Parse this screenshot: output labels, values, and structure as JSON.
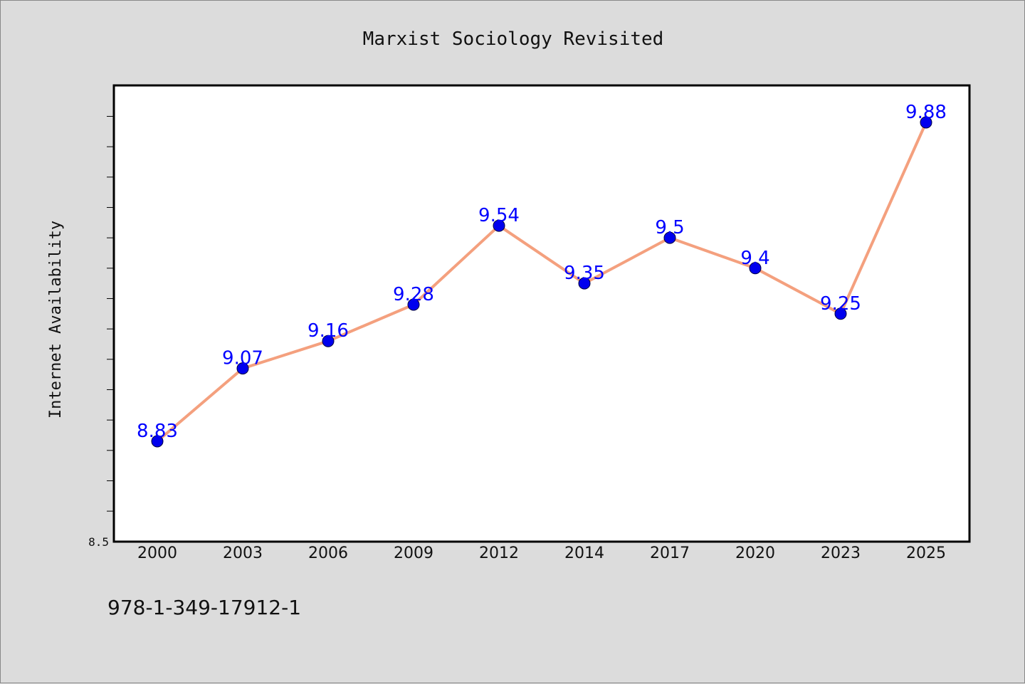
{
  "chart_data": {
    "type": "line",
    "title": "Marxist Sociology Revisited",
    "xlabel": "",
    "ylabel": "Internet Availability",
    "categories": [
      "2000",
      "2003",
      "2006",
      "2009",
      "2012",
      "2014",
      "2017",
      "2020",
      "2023",
      "2025"
    ],
    "series": [
      {
        "values": [
          8.83,
          9.07,
          9.16,
          9.28,
          9.54,
          9.35,
          9.5,
          9.4,
          9.25,
          9.88
        ],
        "data_labels": [
          "8.83",
          "9.07",
          "9.16",
          "9.28",
          "9.54",
          "9.35",
          "9.5",
          "9.4",
          "9.25",
          "9.88"
        ],
        "line_color": "#f4a07e",
        "marker_color": "#0000ee",
        "label_color": "#0000ff"
      }
    ],
    "ylim": [
      8.5,
      10.0
    ],
    "ytick_labels": [
      "8.5"
    ],
    "grid": false,
    "legend": "none"
  },
  "footer": {
    "isbn": "978-1-349-17912-1"
  },
  "colors": {
    "background": "#dcdcdc",
    "plot_background": "#ffffff"
  }
}
